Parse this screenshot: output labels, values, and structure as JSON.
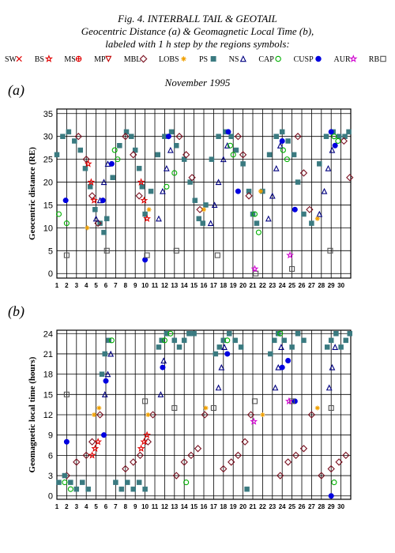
{
  "figure": {
    "title_lines": [
      "Fig. 4. INTERBALL TAIL & GEOTAIL",
      "Geocentric Distance (a) & Geomagnetic Local Time (b),",
      "labeled with 1 h step by the regions symbols:"
    ],
    "period": "November 1995",
    "legend": [
      {
        "name": "SW",
        "symbol": "cross",
        "color": "#e00000"
      },
      {
        "name": "BS",
        "symbol": "star",
        "color": "#e00000"
      },
      {
        "name": "MS",
        "symbol": "plus-circle",
        "color": "#e00000"
      },
      {
        "name": "MP",
        "symbol": "triangle-down",
        "color": "#c00000"
      },
      {
        "name": "MBL",
        "symbol": "diamond",
        "color": "#7a1020"
      },
      {
        "name": "LOBS",
        "symbol": "asterisk",
        "color": "#f0a000"
      },
      {
        "name": "PS",
        "symbol": "filled-square",
        "color": "#3a7a80"
      },
      {
        "name": "NS",
        "symbol": "triangle-up",
        "color": "#000080"
      },
      {
        "name": "CAP",
        "symbol": "circle",
        "color": "#00b000"
      },
      {
        "name": "CUSP",
        "symbol": "filled-circle",
        "color": "#0000e0"
      },
      {
        "name": "AUR",
        "symbol": "star",
        "color": "#d000d0"
      },
      {
        "name": "RB",
        "symbol": "square",
        "color": "#555555"
      }
    ]
  },
  "chart_data": [
    {
      "type": "scatter",
      "panel_label": "(a)",
      "ylabel": "Geocentric distance (RE)",
      "xlabel": "",
      "xlim": [
        1,
        31
      ],
      "ylim": [
        -1,
        36
      ],
      "yticks": [
        0,
        5,
        10,
        15,
        20,
        25,
        30,
        35
      ],
      "xticks": [
        1,
        2,
        3,
        4,
        5,
        6,
        7,
        8,
        9,
        10,
        11,
        12,
        13,
        14,
        15,
        16,
        17,
        18,
        19,
        20,
        21,
        22,
        23,
        24,
        25,
        26,
        27,
        28,
        29,
        30
      ],
      "grid": true,
      "series": [
        {
          "name": "PS",
          "x": [
            1.0,
            1.6,
            2.2,
            2.8,
            3.4,
            3.9,
            4.4,
            4.9,
            5.4,
            5.8,
            6.1,
            6.7,
            7.4,
            8.1,
            8.6,
            9.0,
            9.4,
            9.7,
            10.0,
            10.6,
            11.3,
            12.0,
            12.7,
            13.2,
            14.0,
            14.6,
            15.1,
            15.5,
            15.9,
            16.2,
            16.8,
            17.5,
            18.2,
            18.8,
            19.3,
            20.0,
            20.6,
            21.0,
            21.4,
            22.0,
            22.7,
            23.4,
            24.0,
            24.6,
            25.2,
            25.6,
            26.2,
            27.0,
            27.8,
            28.5,
            29.2,
            29.8,
            30.4,
            30.8
          ],
          "y": [
            26,
            30,
            31,
            29,
            27,
            23,
            19,
            14,
            11,
            9,
            12,
            21,
            28,
            31,
            30,
            27,
            23,
            19,
            13,
            18,
            26,
            30,
            31,
            28,
            25,
            20,
            16,
            12,
            11,
            15,
            25,
            30,
            31,
            30,
            27,
            24,
            18,
            13,
            11,
            18,
            26,
            30,
            31,
            29,
            26,
            20,
            13,
            11,
            24,
            30,
            31,
            30,
            30,
            31
          ]
        },
        {
          "name": "MBL",
          "x": [
            3.2,
            4.0,
            4.6,
            5.2,
            8.0,
            8.8,
            9.4,
            13.5,
            14.2,
            14.8,
            15.6,
            19.5,
            20.0,
            20.6,
            25.6,
            26.2,
            26.8,
            30.3,
            30.9
          ],
          "y": [
            30,
            25,
            17,
            11,
            30,
            26,
            17,
            30,
            26,
            21,
            14,
            30,
            26,
            17,
            30,
            22,
            14,
            29,
            21
          ]
        },
        {
          "name": "NS",
          "x": [
            5.0,
            5.4,
            5.8,
            6.2,
            11.4,
            11.8,
            12.2,
            12.6,
            16.7,
            17.1,
            17.5,
            18.0,
            18.4,
            22.6,
            23.0,
            23.4,
            23.8,
            27.8,
            28.3,
            28.7,
            29.1
          ],
          "y": [
            12,
            16,
            20,
            24,
            12,
            18,
            23,
            27,
            11,
            15,
            20,
            25,
            28,
            12,
            17,
            23,
            28,
            13,
            18,
            23,
            27
          ]
        },
        {
          "name": "BS",
          "x": [
            4.2,
            4.5,
            4.8,
            9.6,
            9.9,
            10.2
          ],
          "y": [
            24,
            20,
            16,
            20,
            16,
            12
          ]
        },
        {
          "name": "CAP",
          "x": [
            1.2,
            2.0,
            6.9,
            7.2,
            12.2,
            13.0,
            18.7,
            19.0,
            21.2,
            21.6,
            24.1,
            24.5,
            29.3,
            29.7
          ],
          "y": [
            13,
            11,
            27,
            25,
            19,
            22,
            28,
            26,
            13,
            9,
            27,
            25,
            30,
            29
          ]
        },
        {
          "name": "CUSP",
          "x": [
            1.9,
            5.7,
            6.6,
            10.0,
            12.4,
            18.5,
            19.5,
            24.0,
            25.3,
            29.0,
            29.4
          ],
          "y": [
            16,
            16,
            24,
            3,
            30,
            31,
            18,
            29,
            14,
            31,
            28
          ]
        },
        {
          "name": "LOBS",
          "x": [
            4.1,
            10.4,
            16.0,
            21.8,
            27.6
          ],
          "y": [
            10,
            14,
            14,
            18,
            12
          ]
        },
        {
          "name": "RB",
          "x": [
            2.0,
            6.1,
            10.2,
            13.2,
            17.4,
            21.3,
            25.0,
            28.9
          ],
          "y": [
            4,
            5,
            4,
            5,
            4,
            0,
            1,
            5
          ]
        },
        {
          "name": "AUR",
          "x": [
            21.2,
            24.8
          ],
          "y": [
            1,
            4
          ]
        }
      ]
    },
    {
      "type": "scatter",
      "panel_label": "(b)",
      "ylabel": "Geomagnetic local time (hours)",
      "xlabel": "",
      "xlim": [
        1,
        31
      ],
      "ylim": [
        -0.5,
        24.5
      ],
      "yticks": [
        0,
        3,
        6,
        9,
        12,
        15,
        18,
        21,
        24
      ],
      "xticks": [
        1,
        2,
        3,
        4,
        5,
        6,
        7,
        8,
        9,
        10,
        11,
        12,
        13,
        14,
        15,
        16,
        17,
        18,
        19,
        20,
        21,
        22,
        23,
        24,
        25,
        26,
        27,
        28,
        29,
        30
      ],
      "grid": true,
      "series": [
        {
          "name": "MBL",
          "x": [
            2.0,
            3.0,
            4.0,
            4.6,
            5.4,
            8.0,
            8.8,
            9.5,
            10.3,
            10.8,
            13.2,
            14.0,
            14.7,
            15.4,
            16.1,
            18.0,
            18.8,
            19.5,
            20.2,
            20.8,
            23.8,
            24.6,
            25.4,
            26.2,
            27.0,
            28.0,
            29.0,
            29.8,
            30.5
          ],
          "y": [
            3,
            5,
            6,
            8,
            12,
            4,
            5,
            6,
            8,
            12,
            3,
            5,
            6,
            7,
            12,
            4,
            5,
            6,
            8,
            12,
            3,
            5,
            6,
            7,
            12,
            3,
            4,
            5,
            6
          ]
        },
        {
          "name": "PS",
          "x": [
            1.2,
            1.8,
            2.4,
            3.0,
            3.6,
            4.2,
            5.6,
            5.9,
            6.3,
            7.0,
            7.6,
            8.2,
            8.8,
            9.4,
            10.0,
            11.4,
            11.7,
            12.2,
            13.0,
            13.5,
            14.0,
            14.5,
            15.0,
            17.2,
            17.6,
            18.0,
            18.6,
            19.2,
            19.8,
            20.4,
            22.8,
            23.2,
            23.6,
            24.2,
            25.0,
            25.6,
            26.2,
            28.6,
            29.0,
            29.5,
            30.0,
            30.5,
            30.9
          ],
          "y": [
            2,
            3,
            2,
            1,
            2,
            1,
            18,
            21,
            23,
            2,
            1,
            2,
            1,
            2,
            1,
            22,
            23,
            24,
            23,
            22,
            23,
            24,
            24,
            21,
            22,
            23,
            24,
            23,
            22,
            1,
            21,
            23,
            24,
            23,
            22,
            24,
            23,
            22,
            23,
            24,
            22,
            23,
            24
          ]
        },
        {
          "name": "NS",
          "x": [
            5.9,
            6.2,
            6.5,
            11.6,
            11.9,
            17.5,
            17.8,
            18.1,
            23.3,
            23.6,
            23.9,
            28.8,
            29.1,
            29.4
          ],
          "y": [
            15,
            18,
            21,
            15,
            20,
            16,
            19,
            22,
            16,
            19,
            22,
            16,
            19,
            22
          ]
        },
        {
          "name": "BS",
          "x": [
            4.6,
            4.9,
            5.2,
            9.6,
            9.9,
            10.2
          ],
          "y": [
            6,
            7,
            8,
            7,
            8,
            9
          ]
        },
        {
          "name": "CAP",
          "x": [
            1.8,
            2.4,
            6.6,
            12.0,
            12.6,
            14.2,
            18.4,
            23.8,
            29.3
          ],
          "y": [
            2,
            1,
            23,
            23,
            24,
            2,
            23,
            24,
            2
          ]
        },
        {
          "name": "CUSP",
          "x": [
            2.0,
            5.8,
            6.0,
            11.8,
            18.4,
            24.0,
            24.6,
            25.3,
            29.0
          ],
          "y": [
            8,
            9,
            17,
            19,
            21,
            19,
            20,
            14,
            0
          ]
        },
        {
          "name": "LOBS",
          "x": [
            4.8,
            5.3,
            10.3,
            16.2,
            22.0,
            27.6
          ],
          "y": [
            12,
            13,
            12,
            13,
            12,
            13
          ]
        },
        {
          "name": "RB",
          "x": [
            2.0,
            10.0,
            13.0,
            17.0,
            21.2,
            25.0,
            29.0
          ],
          "y": [
            15,
            14,
            13,
            13,
            14,
            14,
            13
          ]
        },
        {
          "name": "AUR",
          "x": [
            21.1,
            24.7
          ],
          "y": [
            11,
            14
          ]
        }
      ]
    }
  ]
}
